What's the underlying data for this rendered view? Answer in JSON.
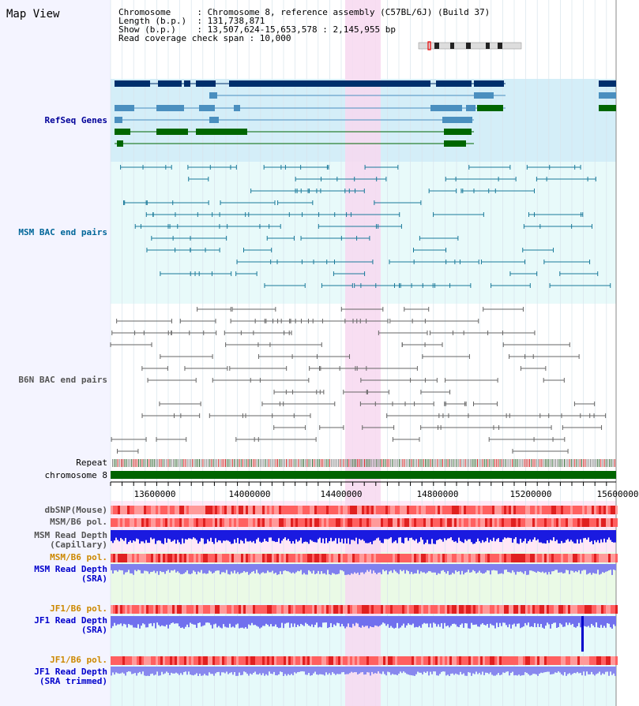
{
  "title": "Map View",
  "header": {
    "lines": [
      "Chromosome     : Chromosome 8, reference assembly (C57BL/6J) (Build 37)",
      "Length (b.p.)  : 131,738,871",
      "Show (b.p.)    : 13,507,624-15,653,578 : 2,145,955 bp",
      "Read coverage check span : 10,000"
    ]
  },
  "tracks": {
    "refseq": {
      "label": "RefSeq Genes",
      "color": "#000099"
    },
    "msm_bac": {
      "label": "MSM BAC end pairs",
      "color": "#006699"
    },
    "b6n_bac": {
      "label": "B6N BAC end pairs",
      "color": "#555555"
    },
    "repeat": {
      "label": "Repeat"
    },
    "chromosome": {
      "label": "chromosome 8"
    },
    "dbsnp": {
      "label": "dbSNP(Mouse)"
    },
    "msm_b6_pol": {
      "label": "MSM/B6 pol."
    },
    "msm_depth_cap": {
      "label1": "MSM Read Depth",
      "label2": "(Capillary)"
    },
    "msm_b6_pol2": {
      "label": "MSM/B6 pol.",
      "color": "#cc8800"
    },
    "msm_depth_sra": {
      "label1": "MSM Read Depth",
      "label2": "(SRA)",
      "color": "#0000cc"
    },
    "jf1_b6_pol": {
      "label": "JF1/B6 pol.",
      "color": "#cc8800"
    },
    "jf1_depth_sra": {
      "label1": "JF1 Read Depth",
      "label2": "(SRA)",
      "color": "#0000cc"
    },
    "jf1_b6_pol2": {
      "label": "JF1/B6 pol.",
      "color": "#cc8800"
    },
    "jf1_depth_trim": {
      "label1": "JF1 Read Depth",
      "label2": "(SRA trimmed)",
      "color": "#0000cc"
    }
  },
  "axis": {
    "ticks": [
      "13600000",
      "14000000",
      "14400000",
      "14800000",
      "15200000",
      "15600000"
    ]
  },
  "colors": {
    "highlight": "#f7d8f0",
    "refseq_bg": "#d4eef8",
    "gene_dark": "#002f6c",
    "gene_mid": "#4a8fbf",
    "gene_green": "#006600",
    "chrom_green": "#006400"
  }
}
